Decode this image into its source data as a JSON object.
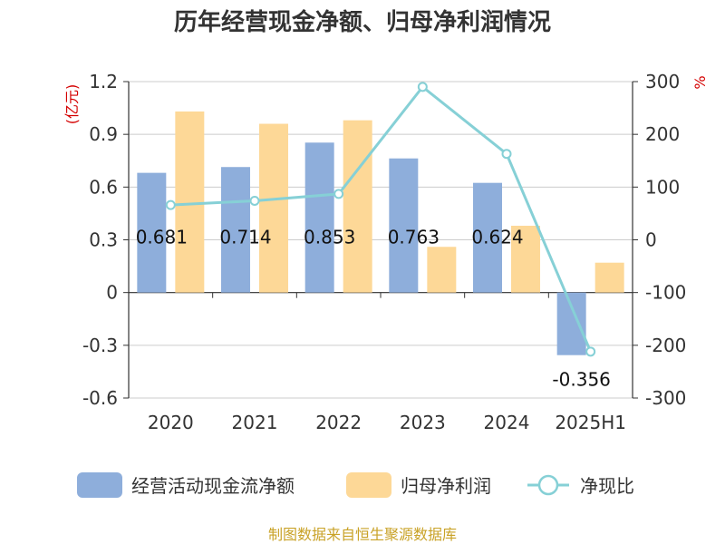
{
  "chart_data": {
    "type": "bar",
    "title": "历年经营现金净额、归母净利润情况",
    "categories": [
      "2020",
      "2021",
      "2022",
      "2023",
      "2024",
      "2025H1"
    ],
    "left_axis": {
      "unit": "(亿元)",
      "ylim": [
        -0.6,
        1.2
      ],
      "ticks": [
        -0.6,
        -0.3,
        0,
        0.3,
        0.6,
        0.9,
        1.2
      ],
      "tick_labels": [
        "-0.6",
        "-0.3",
        "0",
        "0.3",
        "0.6",
        "0.9",
        "1.2"
      ]
    },
    "right_axis": {
      "unit": "%",
      "ylim": [
        -300,
        300
      ],
      "ticks": [
        -300,
        -200,
        -100,
        0,
        100,
        200,
        300
      ],
      "tick_labels": [
        "-300",
        "-200",
        "-100",
        "0",
        "100",
        "200",
        "300"
      ]
    },
    "series": [
      {
        "name": "经营活动现金流净额",
        "kind": "bar",
        "axis": "left",
        "color": "#8eaedb",
        "values": [
          0.681,
          0.714,
          0.853,
          0.763,
          0.624,
          -0.356
        ],
        "labels": [
          "0.681",
          "0.714",
          "0.853",
          "0.763",
          "0.624",
          "-0.356"
        ]
      },
      {
        "name": "归母净利润",
        "kind": "bar",
        "axis": "left",
        "color": "#fdd897",
        "values": [
          1.03,
          0.96,
          0.98,
          0.26,
          0.38,
          0.17
        ]
      },
      {
        "name": "净现比",
        "kind": "line",
        "axis": "right",
        "color": "#86d0d6",
        "values": [
          66,
          74,
          87,
          290,
          163,
          -212
        ]
      }
    ],
    "grid": true,
    "legend_position": "bottom"
  },
  "footer": {
    "source": "制图数据来自恒生聚源数据库"
  }
}
